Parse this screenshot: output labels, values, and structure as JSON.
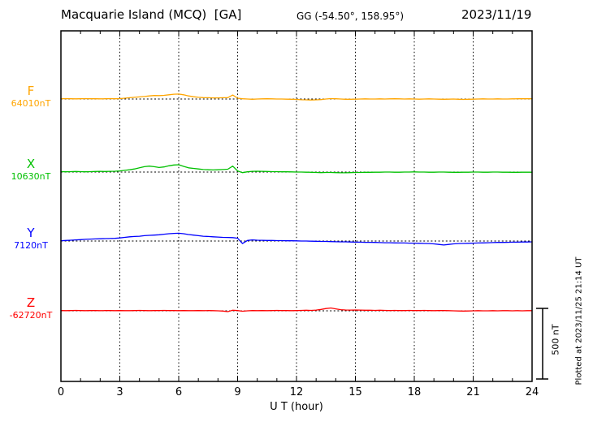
{
  "header": {
    "station_title": "Macquarie Island (MCQ)  [GA]",
    "coords": "GG (-54.50°, 158.95°)",
    "date": "2023/11/19"
  },
  "axis": {
    "xlabel": "U T (hour)",
    "tick_labels": [
      "0",
      "3",
      "6",
      "9",
      "12",
      "15",
      "18",
      "21",
      "24"
    ],
    "tick_hours": [
      0,
      3,
      6,
      9,
      12,
      15,
      18,
      21,
      24
    ]
  },
  "scale_bar": {
    "label": "500 nT",
    "span_nT": 500
  },
  "footer": {
    "note": "Plotted at 2023/11/25 21:14 UT"
  },
  "chart_data": {
    "type": "line",
    "title": "Macquarie Island (MCQ) [GA] magnetogram 2023/11/19",
    "xlabel": "U T (hour)",
    "xlim": [
      0,
      24
    ],
    "x_start": 0,
    "x_step": 0.25,
    "grid": "vertical-dotted-every-3h",
    "scale_nT_per_div": 500,
    "series": [
      {
        "name": "F",
        "baseline_label": "64010nT",
        "color": "#ffa500",
        "offsets_nT": [
          2,
          3,
          2,
          1,
          2,
          3,
          2,
          2,
          1,
          2,
          3,
          2,
          3,
          6,
          9,
          12,
          15,
          18,
          22,
          25,
          24,
          26,
          30,
          34,
          35,
          30,
          22,
          16,
          12,
          10,
          9,
          8,
          8,
          9,
          10,
          28,
          6,
          2,
          0,
          -2,
          0,
          1,
          2,
          1,
          0,
          0,
          -1,
          -2,
          -3,
          -5,
          -6,
          -7,
          -6,
          -4,
          0,
          3,
          2,
          0,
          -2,
          -2,
          -1,
          0,
          1,
          0,
          0,
          1,
          0,
          1,
          2,
          1,
          0,
          1,
          0,
          -1,
          0,
          1,
          0,
          -1,
          -2,
          -1,
          0,
          -2,
          -3,
          -2,
          -1,
          0,
          1,
          0,
          0,
          1,
          0,
          0,
          1,
          2,
          2,
          2,
          2
        ]
      },
      {
        "name": "X",
        "baseline_label": "10630nT",
        "color": "#00c000",
        "offsets_nT": [
          3,
          2,
          3,
          4,
          3,
          2,
          3,
          4,
          5,
          4,
          5,
          6,
          8,
          12,
          16,
          22,
          30,
          38,
          42,
          38,
          32,
          36,
          44,
          50,
          52,
          40,
          30,
          26,
          22,
          18,
          16,
          15,
          16,
          18,
          20,
          42,
          8,
          -4,
          2,
          5,
          6,
          5,
          4,
          3,
          3,
          2,
          2,
          1,
          0,
          0,
          -1,
          -2,
          -3,
          -4,
          -3,
          -3,
          -4,
          -5,
          -5,
          -4,
          -3,
          -3,
          -2,
          -2,
          -1,
          -1,
          0,
          0,
          -1,
          -1,
          0,
          0,
          1,
          0,
          0,
          -1,
          -1,
          0,
          0,
          -1,
          -2,
          -2,
          -1,
          -1,
          0,
          0,
          -1,
          -1,
          0,
          0,
          -1,
          -1,
          -2,
          -2,
          -1,
          -1,
          -1
        ]
      },
      {
        "name": "Y",
        "baseline_label": "7120nT",
        "color": "#0000ff",
        "offsets_nT": [
          2,
          4,
          6,
          8,
          10,
          12,
          14,
          15,
          16,
          17,
          18,
          19,
          22,
          26,
          30,
          32,
          34,
          38,
          40,
          42,
          44,
          48,
          52,
          54,
          55,
          52,
          46,
          42,
          38,
          34,
          32,
          30,
          28,
          26,
          25,
          24,
          20,
          -18,
          4,
          8,
          6,
          5,
          4,
          4,
          3,
          3,
          2,
          2,
          1,
          0,
          0,
          -1,
          -2,
          -3,
          -3,
          -4,
          -5,
          -6,
          -6,
          -7,
          -8,
          -8,
          -9,
          -9,
          -10,
          -11,
          -12,
          -12,
          -13,
          -14,
          -14,
          -15,
          -15,
          -16,
          -17,
          -18,
          -20,
          -24,
          -28,
          -24,
          -20,
          -18,
          -17,
          -16,
          -15,
          -14,
          -13,
          -12,
          -11,
          -10,
          -10,
          -9,
          -8,
          -8,
          -7,
          -7,
          -6
        ]
      },
      {
        "name": "Z",
        "baseline_label": "-62720nT",
        "color": "#ff0000",
        "offsets_nT": [
          2,
          1,
          2,
          3,
          2,
          1,
          2,
          2,
          1,
          2,
          2,
          1,
          2,
          1,
          1,
          2,
          3,
          2,
          1,
          2,
          2,
          3,
          2,
          2,
          1,
          2,
          1,
          1,
          2,
          1,
          2,
          1,
          0,
          -2,
          -6,
          4,
          2,
          -3,
          0,
          2,
          1,
          2,
          1,
          2,
          3,
          2,
          2,
          1,
          2,
          3,
          4,
          3,
          5,
          10,
          16,
          20,
          14,
          8,
          6,
          5,
          6,
          5,
          4,
          4,
          3,
          4,
          3,
          2,
          3,
          2,
          2,
          3,
          2,
          2,
          3,
          2,
          1,
          2,
          2,
          1,
          0,
          -1,
          -2,
          -1,
          0,
          1,
          0,
          0,
          1,
          0,
          1,
          1,
          0,
          1,
          0,
          1,
          1
        ]
      }
    ]
  }
}
